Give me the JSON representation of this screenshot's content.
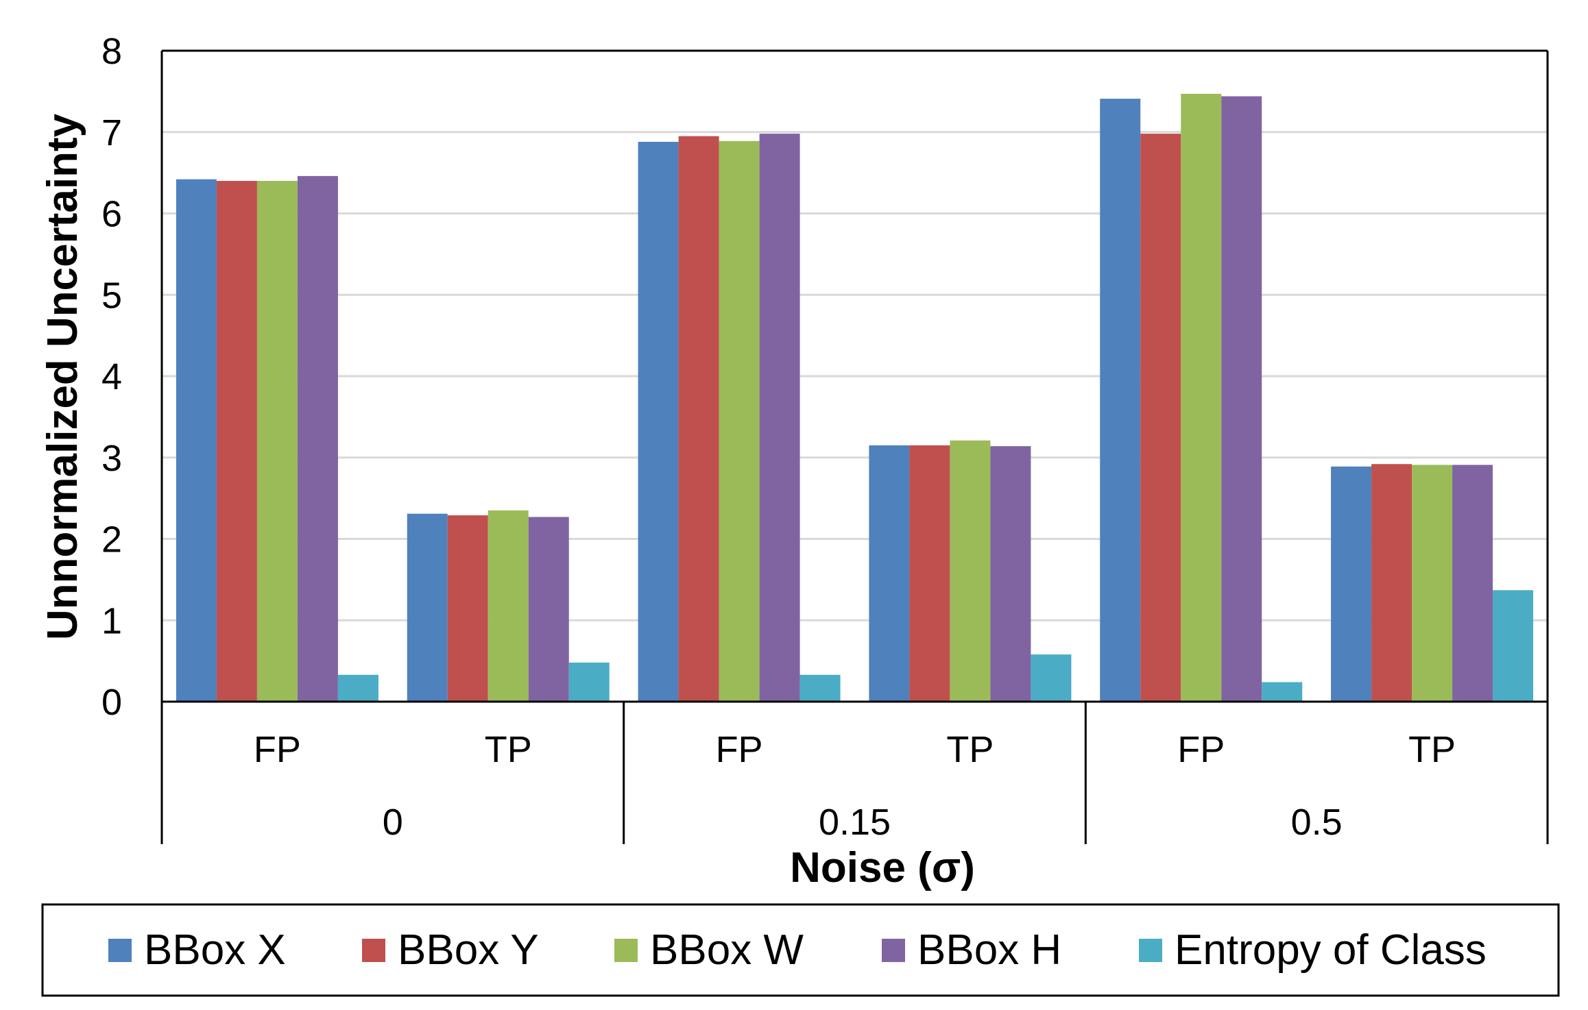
{
  "chart_data": {
    "type": "bar",
    "title": "",
    "xlabel": "Noise (σ)",
    "ylabel": "Unnormalized Uncertainty",
    "ylim": [
      0,
      8
    ],
    "yticks": [
      0,
      1,
      2,
      3,
      4,
      5,
      6,
      7,
      8
    ],
    "ytick_labels": [
      "0",
      "1",
      "2",
      "3",
      "4",
      "5",
      "6",
      "7",
      "8"
    ],
    "grid": true,
    "legend_position": "bottom",
    "groups": [
      {
        "label": "0",
        "categories": [
          "FP",
          "TP"
        ]
      },
      {
        "label": "0.15",
        "categories": [
          "FP",
          "TP"
        ]
      },
      {
        "label": "0.5",
        "categories": [
          "FP",
          "TP"
        ]
      }
    ],
    "categories": [
      "FP",
      "TP",
      "FP",
      "TP",
      "FP",
      "TP"
    ],
    "series": [
      {
        "name": "BBox X",
        "color": "#4F81BD",
        "values": [
          6.42,
          2.31,
          6.88,
          3.15,
          7.41,
          2.89
        ]
      },
      {
        "name": "BBox Y",
        "color": "#C0504D",
        "values": [
          6.4,
          2.29,
          6.95,
          3.15,
          6.98,
          2.92
        ]
      },
      {
        "name": "BBox W",
        "color": "#9BBB59",
        "values": [
          6.4,
          2.35,
          6.89,
          3.21,
          7.47,
          2.91
        ]
      },
      {
        "name": "BBox H",
        "color": "#8064A2",
        "values": [
          6.46,
          2.27,
          6.98,
          3.14,
          7.44,
          2.91
        ]
      },
      {
        "name": "Entropy of Class",
        "color": "#4BACC6",
        "values": [
          0.33,
          0.48,
          0.33,
          0.58,
          0.24,
          1.37
        ]
      }
    ]
  }
}
